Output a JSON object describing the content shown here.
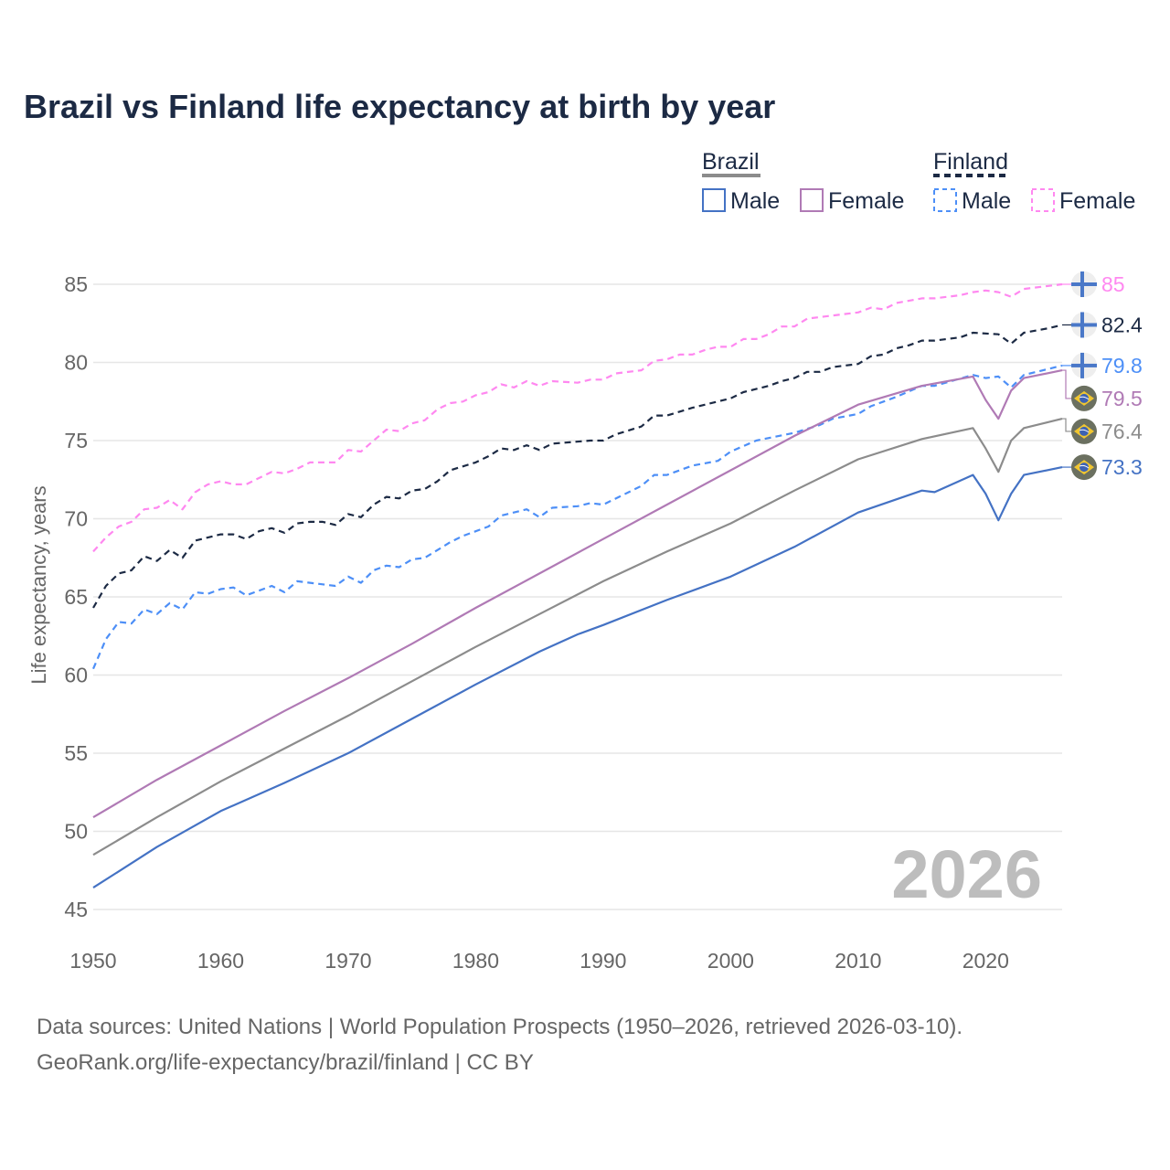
{
  "chart_data": {
    "type": "line",
    "title": "Brazil vs Finland life expectancy at birth by year",
    "xlabel": "",
    "ylabel": "Life expectancy, years",
    "xlim": [
      1950,
      2026
    ],
    "ylim": [
      45,
      86
    ],
    "x_ticks": [
      1950,
      1960,
      1970,
      1980,
      1990,
      2000,
      2010,
      2020
    ],
    "y_ticks": [
      45,
      50,
      55,
      60,
      65,
      70,
      75,
      80,
      85
    ],
    "grid": true,
    "year_watermark": "2026",
    "legend": {
      "placement": "top-right",
      "groups": [
        {
          "name": "Brazil",
          "color": "#8c8c8c",
          "dashed": false,
          "entries": [
            {
              "label": "Male",
              "color": "#4472c4"
            },
            {
              "label": "Female",
              "color": "#b07ab5"
            }
          ]
        },
        {
          "name": "Finland",
          "color": "#1c2a44",
          "dashed": true,
          "entries": [
            {
              "label": "Male",
              "color": "#4d8ff7"
            },
            {
              "label": "Female",
              "color": "#ff88f0"
            }
          ]
        }
      ]
    },
    "series": [
      {
        "name": "Finland Female",
        "country": "finland",
        "color": "#ff88f0",
        "dashed": true,
        "end_label": "85",
        "points": [
          [
            1950,
            67.9
          ],
          [
            1951,
            68.8
          ],
          [
            1952,
            69.5
          ],
          [
            1953,
            69.8
          ],
          [
            1954,
            70.6
          ],
          [
            1955,
            70.7
          ],
          [
            1956,
            71.2
          ],
          [
            1957,
            70.6
          ],
          [
            1958,
            71.7
          ],
          [
            1959,
            72.2
          ],
          [
            1960,
            72.4
          ],
          [
            1961,
            72.2
          ],
          [
            1962,
            72.2
          ],
          [
            1963,
            72.6
          ],
          [
            1964,
            73.0
          ],
          [
            1965,
            72.9
          ],
          [
            1966,
            73.2
          ],
          [
            1967,
            73.6
          ],
          [
            1969,
            73.6
          ],
          [
            1970,
            74.4
          ],
          [
            1971,
            74.3
          ],
          [
            1972,
            75.0
          ],
          [
            1973,
            75.7
          ],
          [
            1974,
            75.6
          ],
          [
            1975,
            76.1
          ],
          [
            1976,
            76.3
          ],
          [
            1977,
            77.0
          ],
          [
            1978,
            77.4
          ],
          [
            1979,
            77.5
          ],
          [
            1980,
            77.9
          ],
          [
            1981,
            78.1
          ],
          [
            1982,
            78.6
          ],
          [
            1983,
            78.4
          ],
          [
            1984,
            78.8
          ],
          [
            1985,
            78.5
          ],
          [
            1986,
            78.8
          ],
          [
            1988,
            78.7
          ],
          [
            1989,
            78.9
          ],
          [
            1990,
            78.9
          ],
          [
            1991,
            79.3
          ],
          [
            1993,
            79.5
          ],
          [
            1994,
            80.1
          ],
          [
            1995,
            80.2
          ],
          [
            1996,
            80.5
          ],
          [
            1997,
            80.5
          ],
          [
            1998,
            80.8
          ],
          [
            1999,
            81.0
          ],
          [
            2000,
            81.0
          ],
          [
            2001,
            81.5
          ],
          [
            2002,
            81.5
          ],
          [
            2003,
            81.8
          ],
          [
            2004,
            82.3
          ],
          [
            2005,
            82.3
          ],
          [
            2006,
            82.8
          ],
          [
            2008,
            83.0
          ],
          [
            2010,
            83.2
          ],
          [
            2011,
            83.5
          ],
          [
            2012,
            83.4
          ],
          [
            2013,
            83.8
          ],
          [
            2015,
            84.1
          ],
          [
            2016,
            84.1
          ],
          [
            2018,
            84.3
          ],
          [
            2019,
            84.5
          ],
          [
            2020,
            84.6
          ],
          [
            2021,
            84.5
          ],
          [
            2022,
            84.2
          ],
          [
            2023,
            84.7
          ],
          [
            2026,
            85.0
          ]
        ]
      },
      {
        "name": "Finland",
        "country": "finland",
        "color": "#1c2a44",
        "dashed": true,
        "end_label": "82.4",
        "points": [
          [
            1950,
            64.3
          ],
          [
            1951,
            65.7
          ],
          [
            1952,
            66.5
          ],
          [
            1953,
            66.7
          ],
          [
            1954,
            67.6
          ],
          [
            1955,
            67.3
          ],
          [
            1956,
            68.0
          ],
          [
            1957,
            67.5
          ],
          [
            1958,
            68.6
          ],
          [
            1960,
            69.0
          ],
          [
            1961,
            69.0
          ],
          [
            1962,
            68.7
          ],
          [
            1963,
            69.2
          ],
          [
            1964,
            69.4
          ],
          [
            1965,
            69.1
          ],
          [
            1966,
            69.7
          ],
          [
            1967,
            69.8
          ],
          [
            1968,
            69.8
          ],
          [
            1969,
            69.6
          ],
          [
            1970,
            70.3
          ],
          [
            1971,
            70.1
          ],
          [
            1972,
            70.9
          ],
          [
            1973,
            71.4
          ],
          [
            1974,
            71.3
          ],
          [
            1975,
            71.8
          ],
          [
            1976,
            71.9
          ],
          [
            1977,
            72.4
          ],
          [
            1978,
            73.1
          ],
          [
            1980,
            73.6
          ],
          [
            1981,
            74.0
          ],
          [
            1982,
            74.5
          ],
          [
            1983,
            74.4
          ],
          [
            1984,
            74.7
          ],
          [
            1985,
            74.4
          ],
          [
            1986,
            74.8
          ],
          [
            1989,
            75.0
          ],
          [
            1990,
            75.0
          ],
          [
            1991,
            75.4
          ],
          [
            1993,
            75.9
          ],
          [
            1994,
            76.6
          ],
          [
            1995,
            76.6
          ],
          [
            1997,
            77.1
          ],
          [
            2000,
            77.7
          ],
          [
            2001,
            78.1
          ],
          [
            2003,
            78.5
          ],
          [
            2004,
            78.8
          ],
          [
            2005,
            79.0
          ],
          [
            2006,
            79.4
          ],
          [
            2007,
            79.4
          ],
          [
            2008,
            79.7
          ],
          [
            2010,
            79.9
          ],
          [
            2011,
            80.4
          ],
          [
            2012,
            80.5
          ],
          [
            2013,
            80.9
          ],
          [
            2014,
            81.1
          ],
          [
            2015,
            81.4
          ],
          [
            2016,
            81.4
          ],
          [
            2018,
            81.6
          ],
          [
            2019,
            81.9
          ],
          [
            2021,
            81.8
          ],
          [
            2022,
            81.2
          ],
          [
            2023,
            81.9
          ],
          [
            2025,
            82.2
          ],
          [
            2026,
            82.4
          ]
        ]
      },
      {
        "name": "Finland Male",
        "country": "finland",
        "color": "#4d8ff7",
        "dashed": true,
        "end_label": "79.8",
        "points": [
          [
            1950,
            60.4
          ],
          [
            1951,
            62.3
          ],
          [
            1952,
            63.4
          ],
          [
            1953,
            63.3
          ],
          [
            1954,
            64.2
          ],
          [
            1955,
            63.9
          ],
          [
            1956,
            64.6
          ],
          [
            1957,
            64.2
          ],
          [
            1958,
            65.3
          ],
          [
            1959,
            65.2
          ],
          [
            1960,
            65.5
          ],
          [
            1961,
            65.6
          ],
          [
            1962,
            65.1
          ],
          [
            1964,
            65.7
          ],
          [
            1965,
            65.3
          ],
          [
            1966,
            66.0
          ],
          [
            1969,
            65.7
          ],
          [
            1970,
            66.3
          ],
          [
            1971,
            65.9
          ],
          [
            1972,
            66.7
          ],
          [
            1973,
            67.0
          ],
          [
            1974,
            66.9
          ],
          [
            1975,
            67.4
          ],
          [
            1976,
            67.5
          ],
          [
            1978,
            68.5
          ],
          [
            1979,
            68.9
          ],
          [
            1980,
            69.2
          ],
          [
            1981,
            69.5
          ],
          [
            1982,
            70.2
          ],
          [
            1984,
            70.6
          ],
          [
            1985,
            70.1
          ],
          [
            1986,
            70.7
          ],
          [
            1988,
            70.8
          ],
          [
            1989,
            71.0
          ],
          [
            1990,
            70.9
          ],
          [
            1993,
            72.1
          ],
          [
            1994,
            72.8
          ],
          [
            1995,
            72.8
          ],
          [
            1997,
            73.4
          ],
          [
            1999,
            73.7
          ],
          [
            2000,
            74.3
          ],
          [
            2002,
            75.0
          ],
          [
            2005,
            75.5
          ],
          [
            2007,
            76.0
          ],
          [
            2008,
            76.4
          ],
          [
            2010,
            76.7
          ],
          [
            2011,
            77.2
          ],
          [
            2012,
            77.5
          ],
          [
            2013,
            77.8
          ],
          [
            2015,
            78.5
          ],
          [
            2016,
            78.5
          ],
          [
            2019,
            79.2
          ],
          [
            2020,
            79.0
          ],
          [
            2021,
            79.1
          ],
          [
            2022,
            78.4
          ],
          [
            2023,
            79.2
          ],
          [
            2026,
            79.8
          ]
        ]
      },
      {
        "name": "Brazil Female",
        "country": "brazil",
        "color": "#b07ab5",
        "dashed": false,
        "end_label": "79.5",
        "points": [
          [
            1950,
            50.9
          ],
          [
            1955,
            53.3
          ],
          [
            1960,
            55.5
          ],
          [
            1965,
            57.7
          ],
          [
            1970,
            59.8
          ],
          [
            1975,
            62.0
          ],
          [
            1980,
            64.3
          ],
          [
            1985,
            66.5
          ],
          [
            1990,
            68.7
          ],
          [
            1995,
            70.9
          ],
          [
            2000,
            73.1
          ],
          [
            2005,
            75.3
          ],
          [
            2010,
            77.3
          ],
          [
            2015,
            78.5
          ],
          [
            2019,
            79.1
          ],
          [
            2020,
            77.6
          ],
          [
            2021,
            76.4
          ],
          [
            2022,
            78.2
          ],
          [
            2023,
            79.0
          ],
          [
            2026,
            79.5
          ]
        ]
      },
      {
        "name": "Brazil",
        "country": "brazil",
        "color": "#8c8c8c",
        "dashed": false,
        "end_label": "76.4",
        "points": [
          [
            1950,
            48.5
          ],
          [
            1955,
            50.9
          ],
          [
            1960,
            53.2
          ],
          [
            1965,
            55.3
          ],
          [
            1970,
            57.4
          ],
          [
            1975,
            59.6
          ],
          [
            1980,
            61.8
          ],
          [
            1985,
            63.9
          ],
          [
            1990,
            66.0
          ],
          [
            1995,
            67.9
          ],
          [
            2000,
            69.7
          ],
          [
            2005,
            71.8
          ],
          [
            2010,
            73.8
          ],
          [
            2015,
            75.1
          ],
          [
            2019,
            75.8
          ],
          [
            2020,
            74.5
          ],
          [
            2021,
            73.0
          ],
          [
            2022,
            75.0
          ],
          [
            2023,
            75.8
          ],
          [
            2026,
            76.4
          ]
        ]
      },
      {
        "name": "Brazil Male",
        "country": "brazil",
        "color": "#4472c4",
        "dashed": false,
        "end_label": "73.3",
        "points": [
          [
            1950,
            46.4
          ],
          [
            1955,
            49.0
          ],
          [
            1960,
            51.3
          ],
          [
            1965,
            53.1
          ],
          [
            1970,
            55.0
          ],
          [
            1975,
            57.2
          ],
          [
            1980,
            59.4
          ],
          [
            1985,
            61.5
          ],
          [
            1988,
            62.6
          ],
          [
            1990,
            63.2
          ],
          [
            1995,
            64.8
          ],
          [
            2000,
            66.3
          ],
          [
            2005,
            68.2
          ],
          [
            2010,
            70.4
          ],
          [
            2015,
            71.8
          ],
          [
            2016,
            71.7
          ],
          [
            2019,
            72.8
          ],
          [
            2020,
            71.6
          ],
          [
            2021,
            69.9
          ],
          [
            2022,
            71.6
          ],
          [
            2023,
            72.8
          ],
          [
            2026,
            73.3
          ]
        ]
      }
    ]
  },
  "footer": {
    "line1": "Data sources: United Nations | World Population Prospects (1950–2026, retrieved 2026-03-10).",
    "line2": "GeoRank.org/life-expectancy/brazil/finland | CC BY"
  }
}
